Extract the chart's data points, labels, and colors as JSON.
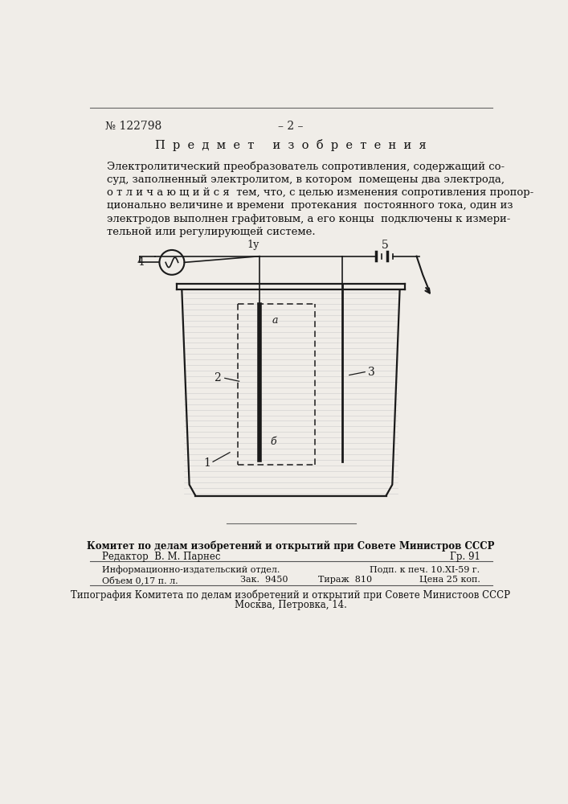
{
  "bg_color": "#f0ede8",
  "patent_number": "№ 122798",
  "page_number": "– 2 –",
  "section_title": "П  р  е  д  м  е  т     и  з  о  б  р  е  т  е  н  и  я",
  "body_lines": [
    "Электролитический преобразователь сопротивления, содержащий со-",
    "суд, заполненный электролитом, в котором  помещены два электрода,",
    "о т л и ч а ю щ и й с я  тем, что, с целью изменения сопротивления пропор-",
    "ционально величине и времени  протекания  постоянного тока, один из",
    "электродов выполнен графитовым, а его концы  подключены к измери-",
    "тельной или регулирующей системе."
  ],
  "footer_line1": "Комитет по делам изобретений и открытий при Совете Министров СССР",
  "footer_line2_left": "Редактор  В. М. Парнес",
  "footer_line2_right": "Гр. 91",
  "footer_line3_left": "Информационно-издательский отдел.",
  "footer_line3_right": "Подп. к печ. 10.XI-59 г.",
  "footer_line4_left": "Объем 0,17 п. л.",
  "footer_line4_mid1": "Зак.  9450",
  "footer_line4_mid2": "Тираж  810",
  "footer_line4_right": "Цена 25 коп.",
  "footer_line5": "Типография Комитета по делам изобретений и открытий при Совете Министоов СССР",
  "footer_line6": "Москва, Петровка, 14."
}
